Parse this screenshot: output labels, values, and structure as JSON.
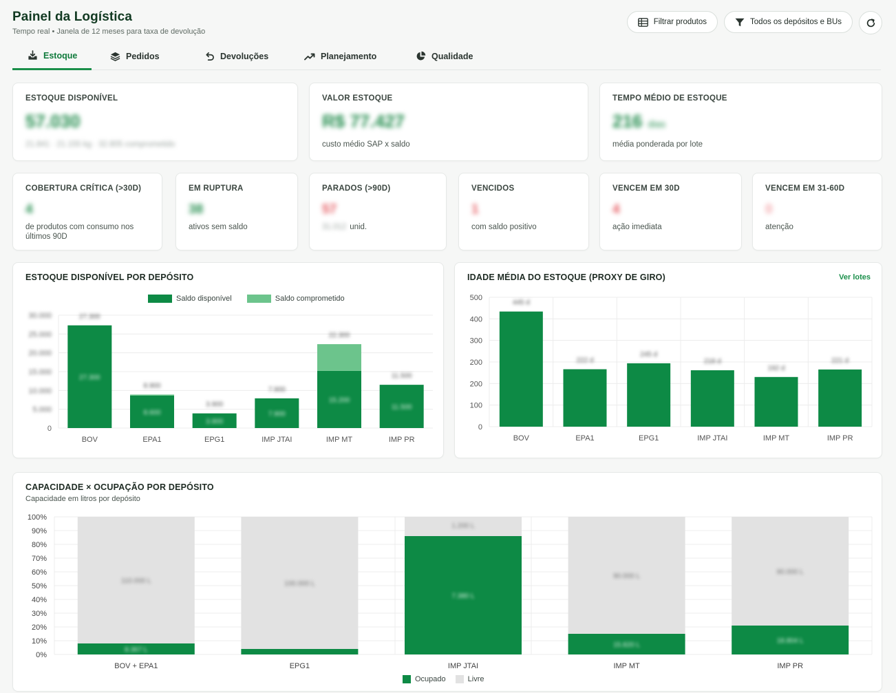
{
  "header": {
    "title": "Painel da Logística",
    "subtitle": "Tempo real • Janela de 12 meses para taxa de devolução",
    "filter_products": "Filtrar produtos",
    "filter_deposits": "Todos os depósitos e BUs"
  },
  "tabs": [
    {
      "label": "Estoque",
      "active": true,
      "icon": "inventory-icon"
    },
    {
      "label": "Pedidos",
      "icon": "layers-icon"
    },
    {
      "label": "Devoluções",
      "icon": "undo-icon"
    },
    {
      "label": "Planejamento",
      "icon": "trend-icon"
    },
    {
      "label": "Qualidade",
      "icon": "pie-icon"
    }
  ],
  "kpis_top": [
    {
      "label": "ESTOQUE DISPONÍVEL",
      "value": "57.030",
      "note": "21.841 · 21.155 kg · 32.805 comprometido"
    },
    {
      "label": "VALOR ESTOQUE",
      "value": "R$ 77.427",
      "note": "custo médio SAP x saldo"
    },
    {
      "label": "TEMPO MÉDIO DE ESTOQUE",
      "value": "216",
      "unit": "dias",
      "note": "média ponderada por lote"
    }
  ],
  "kpis_bottom": [
    {
      "label": "COBERTURA CRÍTICA (>30D)",
      "value": "4",
      "note": "de produtos com consumo nos últimos 90D"
    },
    {
      "label": "EM RUPTURA",
      "value": "38",
      "note": "ativos sem saldo"
    },
    {
      "label": "PARADOS (>90D)",
      "value": "57",
      "note_prefix": "31.012",
      "note": "unid."
    },
    {
      "label": "VENCIDOS",
      "value": "1",
      "note": "com saldo positivo"
    },
    {
      "label": "VENCEM EM 30D",
      "value": "4",
      "note": "ação imediata"
    },
    {
      "label": "VENCEM EM 31-60D",
      "value": "0",
      "note": "atenção"
    }
  ],
  "chart_deposit": {
    "title": "ESTOQUE DISPONÍVEL POR DEPÓSITO",
    "legend": [
      "Saldo disponível",
      "Saldo comprometido"
    ],
    "colors": {
      "available": "#0d8a45",
      "committed": "#6cc48c"
    },
    "chart_data": {
      "type": "bar",
      "categories": [
        "BOV",
        "EPA1",
        "EPG1",
        "IMP JTAI",
        "IMP MT",
        "IMP PR"
      ],
      "ytick_labels": [
        "0",
        "5.000",
        "10.000",
        "15.000",
        "20.000",
        "25.000",
        "30.000"
      ],
      "ylim": [
        0,
        30000
      ],
      "series": [
        {
          "name": "Saldo disponível",
          "values": [
            27300,
            8600,
            3900,
            7900,
            15200,
            11500
          ]
        },
        {
          "name": "Saldo comprometido",
          "values": [
            0,
            300,
            0,
            0,
            7100,
            0
          ]
        }
      ],
      "total_labels": [
        "27.300",
        "8.900",
        "3.900",
        "7.900",
        "22.300",
        "11.500"
      ],
      "inner_labels": [
        "27.300",
        "8.600",
        "3.900",
        "7.900",
        "15.200",
        "11.500"
      ]
    }
  },
  "chart_age": {
    "title": "IDADE MÉDIA DO ESTOQUE (PROXY DE GIRO)",
    "link": "Ver lotes",
    "chart_data": {
      "type": "bar",
      "categories": [
        "BOV",
        "EPA1",
        "EPG1",
        "IMP JTAI",
        "IMP MT",
        "IMP PR"
      ],
      "ytick_labels": [
        "0",
        "100",
        "200",
        "200",
        "300",
        "400",
        "500"
      ],
      "values": [
        445,
        222,
        245,
        218,
        192,
        221
      ],
      "value_labels": [
        "445 d",
        "222 d",
        "245 d",
        "218 d",
        "192 d",
        "221 d"
      ]
    }
  },
  "chart_capacity": {
    "title": "CAPACIDADE × OCUPAÇÃO POR DEPÓSITO",
    "subtitle": "Capacidade em litros por depósito",
    "legend": [
      "Ocupado",
      "Livre"
    ],
    "colors": {
      "occupied": "#0d8a45",
      "free": "#e2e2e2"
    },
    "chart_data": {
      "type": "bar",
      "categories": [
        "BOV + EPA1",
        "EPG1",
        "IMP JTAI",
        "IMP MT",
        "IMP PR"
      ],
      "ytick_labels": [
        "0%",
        "10%",
        "20%",
        "30%",
        "40%",
        "50%",
        "60%",
        "70%",
        "80%",
        "90%",
        "100%"
      ],
      "occupied_pct": [
        8,
        4,
        86,
        15,
        21
      ],
      "occupied_labels": [
        "8.367 L",
        "",
        "7.380 L",
        "15.820 L",
        "18.804 L"
      ],
      "free_labels": [
        "110.000 L",
        "100.000 L",
        "1.200 L",
        "90.000 L",
        "80.000 L"
      ]
    }
  }
}
